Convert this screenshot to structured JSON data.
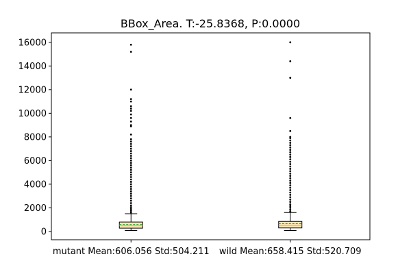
{
  "chart_data": {
    "type": "box",
    "title": "BBox_Area. T:-25.8368, P:0.0000",
    "xlabel": "",
    "ylabel": "",
    "categories": [
      "mutant Mean:606.056 Std:504.211",
      "wild Mean:658.415 Std:520.709"
    ],
    "ylim": [
      -700,
      16800
    ],
    "yticks": [
      0,
      2000,
      4000,
      6000,
      8000,
      10000,
      12000,
      14000,
      16000
    ],
    "grid": false,
    "series": [
      {
        "category": "mutant Mean:606.056 Std:504.211",
        "whisker_low": 80,
        "q1": 280,
        "median": 480,
        "mean": 606.056,
        "q3": 800,
        "whisker_high": 1500,
        "outliers": [
          1600,
          1750,
          1900,
          2050,
          2200,
          2400,
          2600,
          2800,
          3000,
          3200,
          3400,
          3600,
          3800,
          4000,
          4200,
          4400,
          4600,
          4800,
          5000,
          5200,
          5400,
          5600,
          5800,
          6000,
          6200,
          6400,
          6600,
          6800,
          7000,
          7200,
          7400,
          7600,
          7800,
          8200,
          8900,
          9000,
          9300,
          9600,
          9900,
          10200,
          10400,
          10600,
          11000,
          11200,
          12000,
          15200,
          15800
        ]
      },
      {
        "category": "wild Mean:658.415 Std:520.709",
        "whisker_low": 80,
        "q1": 300,
        "median": 520,
        "mean": 658.415,
        "q3": 850,
        "whisker_high": 1600,
        "outliers": [
          1700,
          1850,
          2000,
          2150,
          2300,
          2500,
          2700,
          2900,
          3100,
          3300,
          3500,
          3700,
          3900,
          4100,
          4300,
          4500,
          4700,
          4900,
          5100,
          5300,
          5500,
          5700,
          5900,
          6100,
          6300,
          6500,
          6700,
          6900,
          7100,
          7300,
          7500,
          7700,
          7900,
          8000,
          8500,
          9600,
          13000,
          14400,
          16000
        ]
      }
    ],
    "colors": {
      "box_fill": "#fbe9b7",
      "median_line": "#e8a33d",
      "mean_line": "#2ca02c",
      "outlier": "#000000",
      "axis": "#000000"
    }
  }
}
